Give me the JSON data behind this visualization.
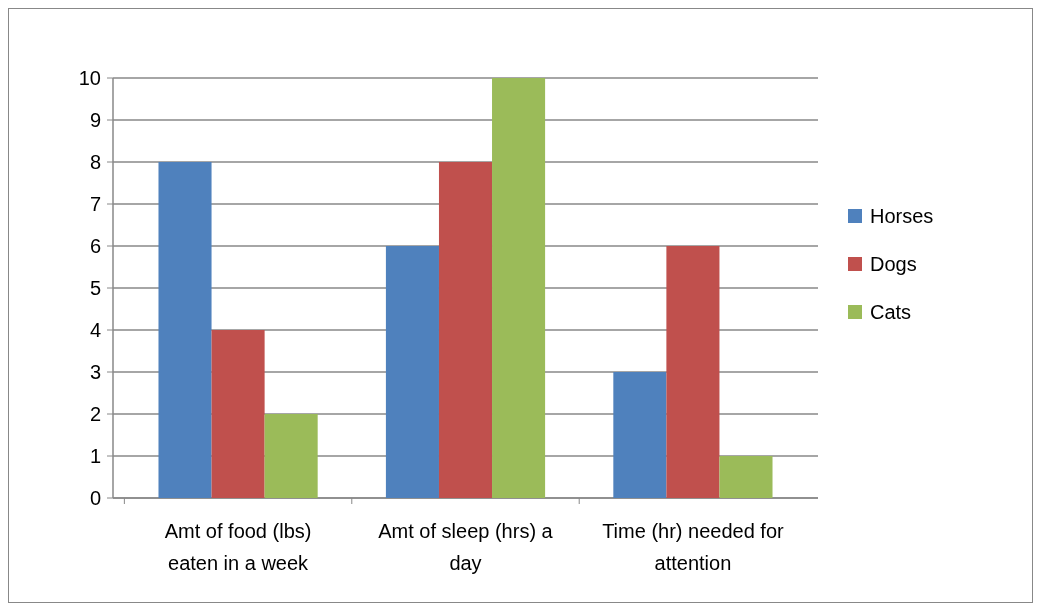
{
  "chart_data": {
    "type": "bar",
    "categories": [
      "Amt of food (lbs) eaten in a week",
      "Amt of sleep (hrs) a day",
      "Time (hr) needed for attention"
    ],
    "series": [
      {
        "name": "Horses",
        "color": "#4f81bd",
        "values": [
          8,
          6,
          3
        ]
      },
      {
        "name": "Dogs",
        "color": "#c0504d",
        "values": [
          4,
          8,
          6
        ]
      },
      {
        "name": "Cats",
        "color": "#9bbb59",
        "values": [
          2,
          10,
          1
        ]
      }
    ],
    "ylim": [
      0,
      10
    ],
    "yticks": [
      0,
      1,
      2,
      3,
      4,
      5,
      6,
      7,
      8,
      9,
      10
    ],
    "grid": "y",
    "legend": "right"
  }
}
